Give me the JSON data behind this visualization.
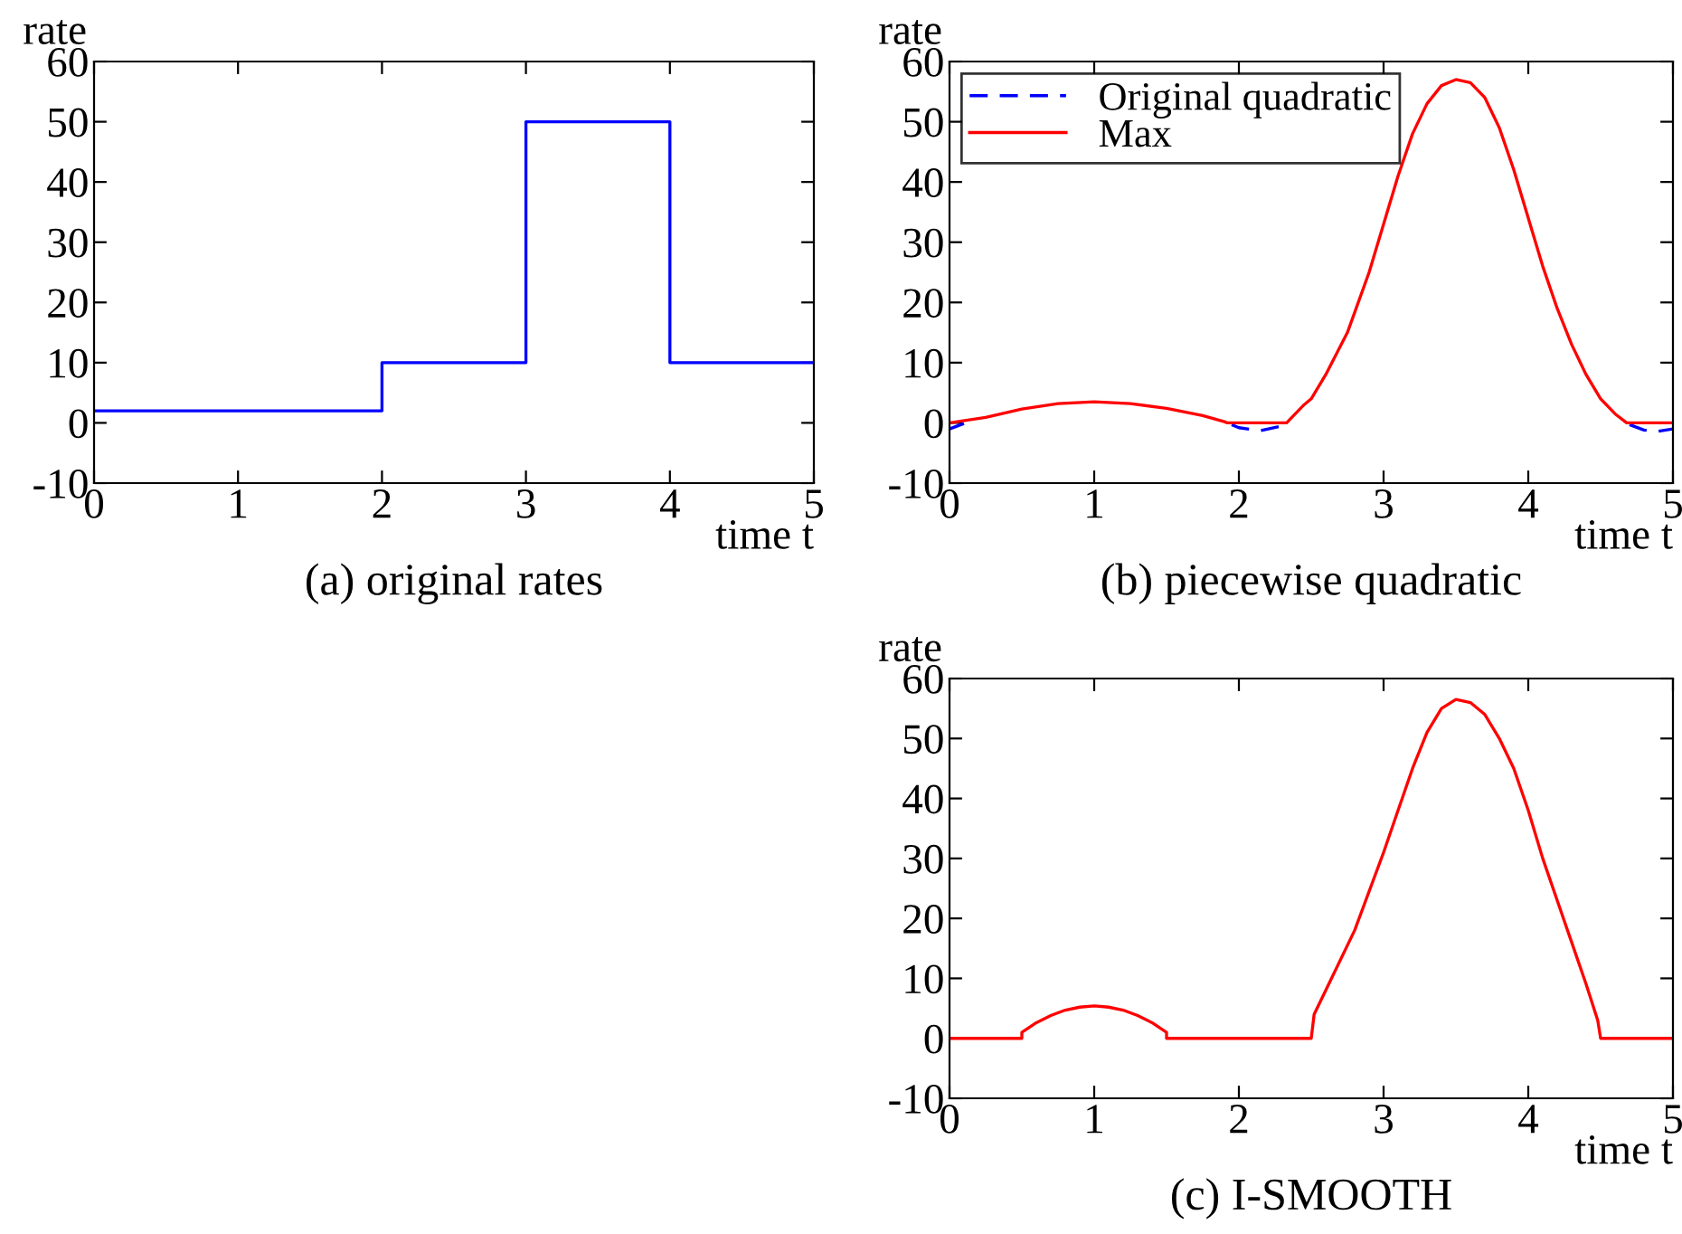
{
  "chart_data": [
    {
      "type": "step",
      "title": "(a) original rates",
      "xlabel": "time t",
      "ylabel": "rate",
      "xlim": [
        0,
        5
      ],
      "ylim": [
        -10,
        60
      ],
      "xticks": [
        0,
        1,
        2,
        3,
        4,
        5
      ],
      "yticks": [
        -10,
        0,
        10,
        20,
        30,
        40,
        50,
        60
      ],
      "grid": false,
      "legend": false,
      "series": [
        {
          "color": "#0000ff",
          "x": [
            0,
            2,
            3,
            4,
            5
          ],
          "values": [
            2,
            10,
            50,
            10,
            10
          ]
        }
      ]
    },
    {
      "type": "line",
      "title": "(b) piecewise quadratic",
      "xlabel": "time t",
      "ylabel": "rate",
      "xlim": [
        0,
        5
      ],
      "ylim": [
        -10,
        60
      ],
      "xticks": [
        0,
        1,
        2,
        3,
        4,
        5
      ],
      "yticks": [
        -10,
        0,
        10,
        20,
        30,
        40,
        50,
        60
      ],
      "grid": false,
      "legend": "top left",
      "series": [
        {
          "name": "Original quadratic",
          "color": "#0000ff",
          "line_style": "dashed",
          "x": [
            0,
            0.1,
            1,
            1.95,
            2.0,
            2.15,
            2.3,
            3.5,
            4.7,
            4.8,
            4.9,
            5
          ],
          "values": [
            -1,
            -0.1,
            null,
            -0.3,
            -0.8,
            -1.3,
            -0.5,
            null,
            -0.3,
            -1.2,
            -1.4,
            -1
          ]
        },
        {
          "name": "Max",
          "color": "#ff0000",
          "line_style": "solid",
          "x": [
            0,
            0.25,
            0.5,
            0.75,
            1,
            1.25,
            1.5,
            1.75,
            1.9,
            1.92,
            2.33,
            2.45,
            2.5,
            2.6,
            2.75,
            2.9,
            3,
            3.1,
            3.2,
            3.3,
            3.4,
            3.5,
            3.6,
            3.7,
            3.8,
            3.9,
            4,
            4.1,
            4.2,
            4.3,
            4.4,
            4.5,
            4.6,
            4.68,
            5
          ],
          "values": [
            0,
            0.9,
            2.3,
            3.2,
            3.5,
            3.2,
            2.4,
            1.2,
            0.2,
            0,
            0,
            3,
            4,
            8,
            15,
            25,
            33,
            41,
            48,
            53,
            56,
            57,
            56.5,
            54,
            49,
            42,
            34,
            26,
            19,
            13,
            8,
            4,
            1.5,
            0,
            0
          ]
        }
      ]
    },
    {
      "type": "line",
      "title": "(c) I-SMOOTH",
      "xlabel": "time t",
      "ylabel": "rate",
      "xlim": [
        0,
        5
      ],
      "ylim": [
        -10,
        60
      ],
      "xticks": [
        0,
        1,
        2,
        3,
        4,
        5
      ],
      "yticks": [
        -10,
        0,
        10,
        20,
        30,
        40,
        50,
        60
      ],
      "grid": false,
      "legend": false,
      "series": [
        {
          "color": "#ff0000",
          "line_style": "solid",
          "x": [
            0,
            0.5,
            0.5,
            0.6,
            0.7,
            0.8,
            0.9,
            1,
            1.1,
            1.2,
            1.3,
            1.4,
            1.5,
            1.5,
            2.5,
            2.52,
            2.6,
            2.8,
            3,
            3.1,
            3.2,
            3.3,
            3.4,
            3.5,
            3.6,
            3.7,
            3.8,
            3.9,
            4,
            4.1,
            4.2,
            4.3,
            4.4,
            4.48,
            4.5,
            5
          ],
          "values": [
            0,
            0,
            1,
            2.6,
            3.8,
            4.7,
            5.2,
            5.4,
            5.2,
            4.7,
            3.8,
            2.6,
            1,
            0,
            0,
            4,
            8,
            18,
            31,
            38,
            45,
            51,
            55,
            56.5,
            56,
            54,
            50,
            45,
            38,
            30,
            23,
            16,
            9,
            3,
            0,
            0
          ]
        }
      ]
    }
  ]
}
